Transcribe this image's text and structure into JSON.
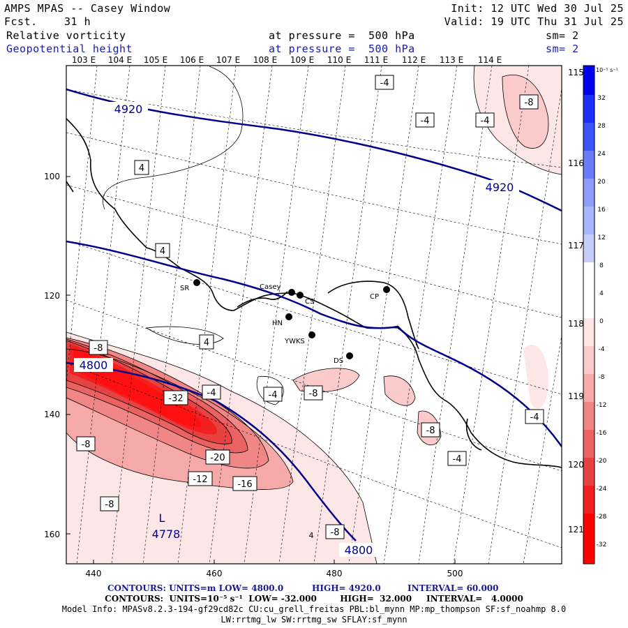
{
  "header": {
    "title": "AMPS MPAS -- Casey Window",
    "forecast_label": "Fcst.",
    "forecast_value": "31 h",
    "init": "Init: 12 UTC Wed 30 Jul 25",
    "valid": "Valid: 19 UTC Thu 31 Jul 25",
    "field1_name": "Relative vorticity",
    "field1_level": "at pressure =  500 hPa",
    "field1_smooth": "sm= 2",
    "field2_name": "Geopotential height",
    "field2_level": "at pressure =  500 hPa",
    "field2_smooth": "sm= 2"
  },
  "map": {
    "top_lon_labels": [
      "103 E",
      "104 E",
      "105 E",
      "106 E",
      "107 E",
      "108 E",
      "109 E",
      "110 E",
      "111 E",
      "112 E",
      "113 E",
      "114 E"
    ],
    "right_lon_labels": [
      "115 E",
      "116 E",
      "117 E",
      "118 E",
      "119 E",
      "120 E",
      "121 E"
    ],
    "left_axis_ticks": [
      "100",
      "120",
      "140",
      "160"
    ],
    "bottom_axis_ticks": [
      "440",
      "460",
      "480",
      "500"
    ],
    "stations": [
      {
        "name": "SR"
      },
      {
        "name": "Casey"
      },
      {
        "name": "CS"
      },
      {
        "name": "CP"
      },
      {
        "name": "HN"
      },
      {
        "name": "YWKS"
      },
      {
        "name": "DS"
      }
    ],
    "height_labels": [
      "4920",
      "4920",
      "4800",
      "4800"
    ],
    "low_marker": {
      "symbol": "L",
      "value": "4778"
    },
    "vorticity_labels": [
      "-4",
      "-8",
      "-4",
      "-4",
      "-8",
      "4",
      "4",
      "4",
      "-8",
      "-4",
      "-32",
      "-4",
      "-8",
      "-8",
      "-20",
      "-12",
      "-16",
      "-8",
      "-8",
      "-4",
      "-4",
      "-8",
      "4"
    ]
  },
  "colorbar": {
    "units": "10⁻⁵ s⁻¹",
    "tick_labels": [
      "32",
      "28",
      "24",
      "20",
      "16",
      "12",
      "8",
      "4",
      "0",
      "-4",
      "-8",
      "-12",
      "-16",
      "-20",
      "-24",
      "-28",
      "-32"
    ],
    "colors": [
      "#0000f0",
      "#1c30f8",
      "#3c55fa",
      "#6a7cfb",
      "#8d9cfb",
      "#aab5fb",
      "#c6cdfb",
      "#ffffff",
      "#ffffff",
      "#fde6e6",
      "#fbcaca",
      "#f6a9a9",
      "#f08686",
      "#ea6262",
      "#e74242",
      "#f22020",
      "#ff0000"
    ]
  },
  "footer": {
    "line1_a": "CONTOURS:  UNITS=m  LOW=  4800.0",
    "line1_b": "HIGH=  4920.0",
    "line1_c": "INTERVAL=  60.000",
    "line2": "CONTOURS:  UNITS=10⁻⁵ s⁻¹  LOW= -32.000        HIGH=  32.000     INTERVAL=   4.0000",
    "line3": "Model Info: MPASv8.2.3-194-gf29cd82c CU:cu_grell_freitas PBL:bl_mynn MP:mp_thompson SF:sf_noahmp 8.0",
    "line4": "LW:rrtmg_lw SW:rrtmg_sw SFLAY:sf_mynn"
  }
}
